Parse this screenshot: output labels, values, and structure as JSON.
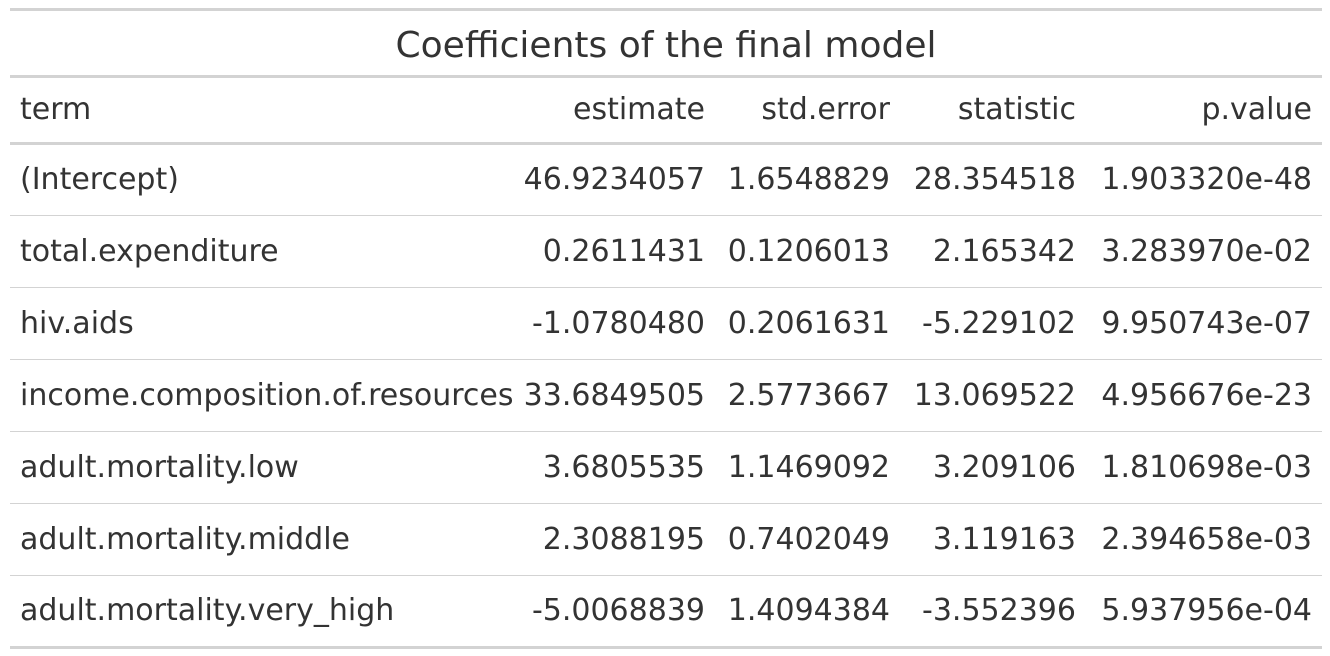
{
  "table": {
    "title": "Coefficients of the final model",
    "columns": [
      "term",
      "estimate",
      "std.error",
      "statistic",
      "p.value"
    ],
    "rows": [
      [
        "(Intercept)",
        "46.9234057",
        "1.6548829",
        "28.354518",
        "1.903320e-48"
      ],
      [
        "total.expenditure",
        "0.2611431",
        "0.1206013",
        "2.165342",
        "3.283970e-02"
      ],
      [
        "hiv.aids",
        "-1.0780480",
        "0.2061631",
        "-5.229102",
        "9.950743e-07"
      ],
      [
        "income.composition.of.resources",
        "33.6849505",
        "2.5773667",
        "13.069522",
        "4.956676e-23"
      ],
      [
        "adult.mortality.low",
        "3.6805535",
        "1.1469092",
        "3.209106",
        "1.810698e-03"
      ],
      [
        "adult.mortality.middle",
        "2.3088195",
        "0.7402049",
        "3.119163",
        "2.394658e-03"
      ],
      [
        "adult.mortality.very_high",
        "-5.0068839",
        "1.4094384",
        "-3.552396",
        "5.937956e-04"
      ]
    ]
  },
  "colors": {
    "text": "#333333",
    "rule": "#d3d3d3",
    "background": "#ffffff"
  }
}
